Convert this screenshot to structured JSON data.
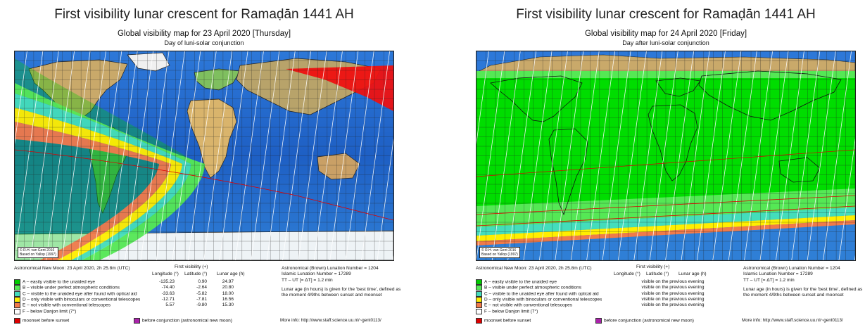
{
  "left": {
    "main_title": "First visibility lunar crescent for Ramaḍān 1441 AH",
    "sub_title": "Global visibility map for 23 April 2020 [Thursday]",
    "sub_note": "Day of luni-solar conjunction",
    "credit_line1": "© R.H. van Gent 2016",
    "credit_line2": "Based on Yallop (1997)",
    "new_moon": "Astronomical New Moon: 23 April 2020, 2h 25.8m (UTC)",
    "fv_head": "First visibility (+)",
    "col_lon": "Longitude (°)",
    "col_lat": "Latitude (°)",
    "col_age": "Lunar age (h)",
    "rows": [
      {
        "label": "A – easily visible to the unaided eye",
        "color": "#00cc00",
        "lon": "-135.23",
        "lat": "0.90",
        "age": "24.97"
      },
      {
        "label": "B – visible under perfect atmospheric conditions",
        "color": "#55e855",
        "lon": "-74.40",
        "lat": "-2.64",
        "age": "20.80"
      },
      {
        "label": "C – visible to the unaided eye after found with optical aid",
        "color": "#44ddbb",
        "lon": "-33.63",
        "lat": "-5.82",
        "age": "18.00"
      },
      {
        "label": "D – only visible with binoculars or conventional telescopes",
        "color": "#ffee00",
        "lon": "-12.71",
        "lat": "-7.81",
        "age": "16.56"
      },
      {
        "label": "E – not visible with conventional telescopes",
        "color": "#f07a4a",
        "lon": "5.57",
        "lat": "-9.80",
        "age": "15.30"
      },
      {
        "label": "F – below Danjon limit (7°)",
        "color": "#ffffff",
        "lon": "",
        "lat": "",
        "age": ""
      }
    ],
    "info1": "Astronomical (Brown) Lunation Number = 1204",
    "info2": "Islamic Lunation Number = 17289",
    "info3": "TT – UT [= ΔT] = 1.2 min",
    "info4": "Lunar age (in hours) is given for the 'best time', defined as the moment 4/9ths between sunset and moonset",
    "moonset_label": "moonset before sunset",
    "moonset_color": "#dd0000",
    "before_conj_label": "before conjunction (astronomical new moon)",
    "before_conj_color": "#aa22aa",
    "more_info": "More info: http://www.staff.science.uu.nl/~gent0113/"
  },
  "right": {
    "main_title": "First visibility lunar crescent for Ramaḍān 1441 AH",
    "sub_title": "Global visibility map for 24 April 2020 [Friday]",
    "sub_note": "Day after luni-solar conjunction",
    "credit_line1": "© R.H. van Gent 2016",
    "credit_line2": "Based on Yallop (1997)",
    "new_moon": "Astronomical New Moon: 23 April 2020, 2h 25.8m (UTC)",
    "fv_head": "First visibility (+)",
    "col_lon": "Longitude (°)",
    "col_lat": "Latitude (°)",
    "col_age": "Lunar age (h)",
    "rows": [
      {
        "label": "A – easily visible to the unaided eye",
        "color": "#00cc00",
        "note": "visible on the previous evening"
      },
      {
        "label": "B – visible under perfect atmospheric conditions",
        "color": "#55e855",
        "note": "visible on the previous evening"
      },
      {
        "label": "C – visible to the unaided eye after found with optical aid",
        "color": "#44ddbb",
        "note": "visible on the previous evening"
      },
      {
        "label": "D – only visible with binoculars or conventional telescopes",
        "color": "#ffee00",
        "note": "visible on the previous evening"
      },
      {
        "label": "E – not visible with conventional telescopes",
        "color": "#f07a4a",
        "note": "visible on the previous evening"
      },
      {
        "label": "F – below Danjon limit (7°)",
        "color": "#ffffff",
        "note": ""
      }
    ],
    "info1": "Astronomical (Brown) Lunation Number = 1204",
    "info2": "Islamic Lunation Number = 17289",
    "info3": "TT – UT [= ΔT] = 1.2 min",
    "info4": "Lunar age (in hours) is given for the 'best time', defined as the moment 4/9ths between sunset and moonset",
    "moonset_label": "moonset before sunset",
    "moonset_color": "#dd0000",
    "before_conj_label": "before conjunction (astronomical new moon)",
    "before_conj_color": "#aa22aa",
    "more_info": "More info: http://www.staff.science.uu.nl/~gent0113/"
  }
}
